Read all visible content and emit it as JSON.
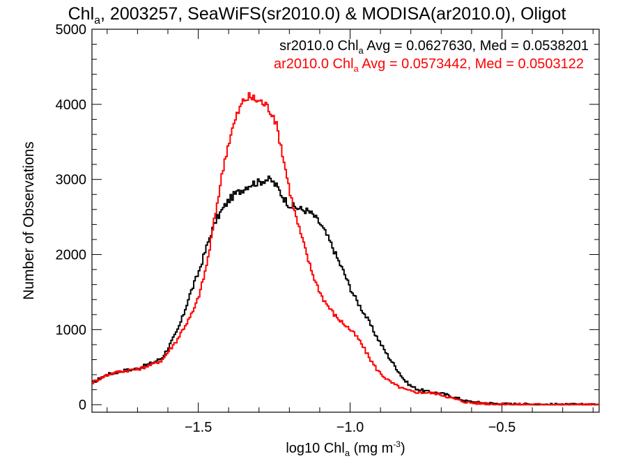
{
  "title": {
    "pre": "Chl",
    "sub": "a",
    "post": ", 2003257, SeaWiFS(sr2010.0) & MODISA(ar2010.0), Oligot"
  },
  "legend": [
    {
      "pre": "sr2010.0 Chl",
      "sub": "a",
      "post": " Avg = 0.0627630, Med = 0.0538201",
      "color": "#000000"
    },
    {
      "pre": "ar2010.0 Chl",
      "sub": "a",
      "post": " Avg = 0.0573442, Med = 0.0503122",
      "color": "#ff0000"
    }
  ],
  "chart_data": {
    "type": "line",
    "step": true,
    "title": "Chla, 2003257, SeaWiFS(sr2010.0) & MODISA(ar2010.0), Oligot",
    "xlabel": {
      "pre": "log10 Chl",
      "sub": "a",
      "mid": " (mg m",
      "sup": "-3",
      "post": ")"
    },
    "ylabel": "Number of Observations",
    "xlim": [
      -1.85,
      -0.18
    ],
    "ylim": [
      -100,
      5000
    ],
    "xticks": [
      {
        "value": -1.5,
        "label": "−1.5"
      },
      {
        "value": -1.0,
        "label": "−1.0"
      },
      {
        "value": -0.5,
        "label": "−0.5"
      }
    ],
    "yticks": [
      {
        "value": 0,
        "label": "0"
      },
      {
        "value": 1000,
        "label": "1000"
      },
      {
        "value": 2000,
        "label": "2000"
      },
      {
        "value": 3000,
        "label": "3000"
      },
      {
        "value": 4000,
        "label": "4000"
      },
      {
        "value": 5000,
        "label": "5000"
      }
    ],
    "grid": false,
    "legend_position": "top-right",
    "series": [
      {
        "name": "sr2010.0 Chla Avg = 0.0627630, Med = 0.0538201",
        "color": "#000000",
        "points": [
          [
            -1.85,
            290
          ],
          [
            -1.8,
            400
          ],
          [
            -1.75,
            450
          ],
          [
            -1.7,
            480
          ],
          [
            -1.65,
            560
          ],
          [
            -1.62,
            620
          ],
          [
            -1.6,
            750
          ],
          [
            -1.57,
            970
          ],
          [
            -1.55,
            1180
          ],
          [
            -1.53,
            1440
          ],
          [
            -1.5,
            1750
          ],
          [
            -1.48,
            2000
          ],
          [
            -1.46,
            2260
          ],
          [
            -1.44,
            2470
          ],
          [
            -1.42,
            2600
          ],
          [
            -1.4,
            2720
          ],
          [
            -1.38,
            2800
          ],
          [
            -1.36,
            2850
          ],
          [
            -1.34,
            2910
          ],
          [
            -1.32,
            2950
          ],
          [
            -1.3,
            2960
          ],
          [
            -1.28,
            3000
          ],
          [
            -1.26,
            2990
          ],
          [
            -1.24,
            2900
          ],
          [
            -1.22,
            2760
          ],
          [
            -1.2,
            2660
          ],
          [
            -1.18,
            2630
          ],
          [
            -1.16,
            2600
          ],
          [
            -1.14,
            2580
          ],
          [
            -1.12,
            2520
          ],
          [
            -1.1,
            2420
          ],
          [
            -1.08,
            2280
          ],
          [
            -1.06,
            2120
          ],
          [
            -1.04,
            1930
          ],
          [
            -1.02,
            1760
          ],
          [
            -1.0,
            1560
          ],
          [
            -0.98,
            1400
          ],
          [
            -0.96,
            1260
          ],
          [
            -0.94,
            1120
          ],
          [
            -0.92,
            960
          ],
          [
            -0.9,
            820
          ],
          [
            -0.88,
            680
          ],
          [
            -0.86,
            560
          ],
          [
            -0.84,
            440
          ],
          [
            -0.82,
            320
          ],
          [
            -0.8,
            250
          ],
          [
            -0.78,
            210
          ],
          [
            -0.76,
            190
          ],
          [
            -0.74,
            170
          ],
          [
            -0.72,
            160
          ],
          [
            -0.7,
            150
          ],
          [
            -0.68,
            130
          ],
          [
            -0.66,
            100
          ],
          [
            -0.64,
            80
          ],
          [
            -0.62,
            50
          ],
          [
            -0.6,
            40
          ],
          [
            -0.58,
            30
          ],
          [
            -0.56,
            25
          ],
          [
            -0.54,
            20
          ],
          [
            -0.52,
            15
          ],
          [
            -0.5,
            10
          ],
          [
            -0.45,
            8
          ],
          [
            -0.4,
            5
          ],
          [
            -0.35,
            3
          ],
          [
            -0.3,
            2
          ],
          [
            -0.25,
            1
          ],
          [
            -0.18,
            0
          ]
        ]
      },
      {
        "name": "ar2010.0 Chla Avg = 0.0573442, Med = 0.0503122",
        "color": "#ff0000",
        "points": [
          [
            -1.85,
            290
          ],
          [
            -1.8,
            400
          ],
          [
            -1.75,
            450
          ],
          [
            -1.7,
            470
          ],
          [
            -1.65,
            540
          ],
          [
            -1.62,
            590
          ],
          [
            -1.6,
            700
          ],
          [
            -1.57,
            860
          ],
          [
            -1.55,
            1010
          ],
          [
            -1.53,
            1140
          ],
          [
            -1.51,
            1300
          ],
          [
            -1.49,
            1560
          ],
          [
            -1.47,
            1900
          ],
          [
            -1.45,
            2380
          ],
          [
            -1.43,
            2870
          ],
          [
            -1.41,
            3320
          ],
          [
            -1.39,
            3640
          ],
          [
            -1.37,
            3880
          ],
          [
            -1.35,
            4060
          ],
          [
            -1.33,
            4100
          ],
          [
            -1.31,
            4060
          ],
          [
            -1.29,
            4030
          ],
          [
            -1.27,
            3960
          ],
          [
            -1.25,
            3840
          ],
          [
            -1.23,
            3500
          ],
          [
            -1.21,
            3080
          ],
          [
            -1.19,
            2680
          ],
          [
            -1.17,
            2380
          ],
          [
            -1.15,
            2100
          ],
          [
            -1.13,
            1820
          ],
          [
            -1.11,
            1600
          ],
          [
            -1.09,
            1420
          ],
          [
            -1.07,
            1300
          ],
          [
            -1.05,
            1190
          ],
          [
            -1.03,
            1110
          ],
          [
            -1.01,
            1040
          ],
          [
            -0.99,
            960
          ],
          [
            -0.97,
            860
          ],
          [
            -0.95,
            720
          ],
          [
            -0.93,
            580
          ],
          [
            -0.91,
            460
          ],
          [
            -0.89,
            380
          ],
          [
            -0.87,
            310
          ],
          [
            -0.85,
            260
          ],
          [
            -0.83,
            220
          ],
          [
            -0.81,
            190
          ],
          [
            -0.79,
            170
          ],
          [
            -0.77,
            165
          ],
          [
            -0.75,
            160
          ],
          [
            -0.73,
            155
          ],
          [
            -0.71,
            145
          ],
          [
            -0.69,
            120
          ],
          [
            -0.67,
            95
          ],
          [
            -0.65,
            70
          ],
          [
            -0.63,
            45
          ],
          [
            -0.61,
            30
          ],
          [
            -0.59,
            22
          ],
          [
            -0.57,
            18
          ],
          [
            -0.55,
            14
          ],
          [
            -0.53,
            10
          ],
          [
            -0.5,
            7
          ],
          [
            -0.45,
            5
          ],
          [
            -0.4,
            3
          ],
          [
            -0.35,
            2
          ],
          [
            -0.3,
            1
          ],
          [
            -0.25,
            0
          ],
          [
            -0.18,
            0
          ]
        ]
      }
    ]
  }
}
